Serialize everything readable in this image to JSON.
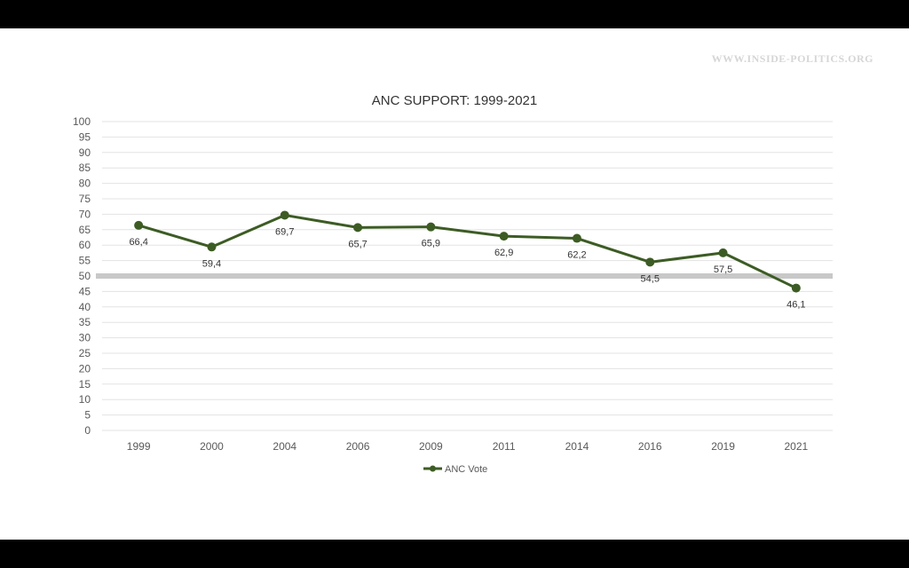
{
  "watermark": "WWW.INSIDE-POLITICS.ORG",
  "chart_data": {
    "type": "line",
    "title": "ANC SUPPORT: 1999-2021",
    "xlabel": "",
    "ylabel": "",
    "categories": [
      "1999",
      "2000",
      "2004",
      "2006",
      "2009",
      "2011",
      "2014",
      "2016",
      "2019",
      "2021"
    ],
    "series": [
      {
        "name": "ANC Vote",
        "values": [
          66.4,
          59.4,
          69.7,
          65.7,
          65.9,
          62.9,
          62.2,
          54.5,
          57.5,
          46.1
        ],
        "labels": [
          "66,4",
          "59,4",
          "69,7",
          "65,7",
          "65,9",
          "62,9",
          "62,2",
          "54,5",
          "57,5",
          "46,1"
        ]
      }
    ],
    "ylim": [
      0,
      100
    ],
    "yticks": [
      0,
      5,
      10,
      15,
      20,
      25,
      30,
      35,
      40,
      45,
      50,
      55,
      60,
      65,
      70,
      75,
      80,
      85,
      90,
      95,
      100
    ],
    "reference_line": 50,
    "grid": true,
    "legend": "bottom",
    "colors": {
      "line": "#3d5c24",
      "gridline": "#e3e3e3",
      "reference": "#c8c8c8"
    }
  }
}
